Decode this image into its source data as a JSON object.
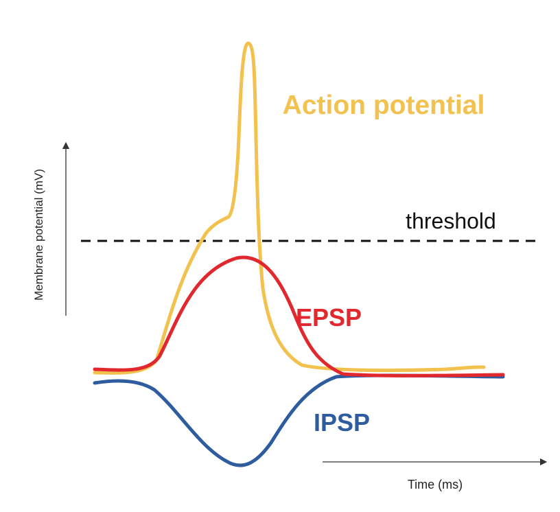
{
  "diagram": {
    "y_axis_label": "Membrane potential (mV)",
    "x_axis_label": "Time (ms)",
    "threshold_label": "threshold",
    "curves": [
      {
        "id": "action",
        "label": "Action potential",
        "color": "#F2C14E"
      },
      {
        "id": "epsp",
        "label": "EPSP",
        "color": "#E0282E"
      },
      {
        "id": "ipsp",
        "label": "IPSP",
        "color": "#2E5C9E"
      }
    ],
    "threshold_color": "#111111",
    "axis_color": "#333333"
  }
}
